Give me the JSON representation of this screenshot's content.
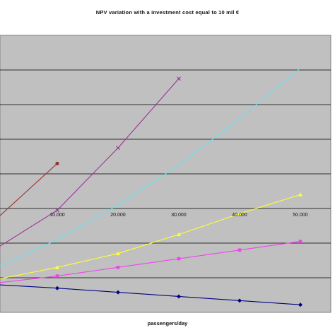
{
  "chart_data": {
    "type": "line",
    "title": "NPV variation with a investment cost equal to 10 mil €",
    "xlabel": "passengers/day",
    "ylabel": "",
    "x_tick_labels": [
      "10.000",
      "20.000",
      "30.000",
      "40.000",
      "50.000"
    ],
    "x_ticks": [
      10000,
      20000,
      30000,
      40000,
      50000
    ],
    "xlim": [
      0,
      55000
    ],
    "ylim": [
      0,
      8
    ],
    "grid": true,
    "legend": "none",
    "series": [
      {
        "color": "#993333",
        "marker": "circle",
        "x": [
          0,
          10000
        ],
        "y": [
          2.7,
          4.3
        ]
      },
      {
        "color": "#993399",
        "marker": "x",
        "x": [
          0,
          10000,
          20000,
          30000
        ],
        "y": [
          1.85,
          2.95,
          4.75,
          6.75
        ]
      },
      {
        "color": "#66e0f0",
        "marker": "none",
        "x": [
          0,
          10000,
          20000,
          30000,
          40000,
          50000
        ],
        "y": [
          1.3,
          2.1,
          3.1,
          4.25,
          5.6,
          7.05
        ]
      },
      {
        "color": "#ffff33",
        "marker": "triangle",
        "x": [
          0,
          10000,
          20000,
          30000,
          40000,
          50000
        ],
        "y": [
          0.95,
          1.3,
          1.7,
          2.25,
          2.85,
          3.4
        ]
      },
      {
        "color": "#ee44ee",
        "marker": "square",
        "x": [
          0,
          10000,
          20000,
          30000,
          40000,
          50000
        ],
        "y": [
          0.85,
          1.05,
          1.3,
          1.55,
          1.8,
          2.05
        ]
      },
      {
        "color": "#000080",
        "marker": "diamond",
        "x": [
          0,
          10000,
          20000,
          30000,
          40000,
          50000
        ],
        "y": [
          0.8,
          0.7,
          0.58,
          0.46,
          0.34,
          0.22
        ]
      }
    ]
  }
}
